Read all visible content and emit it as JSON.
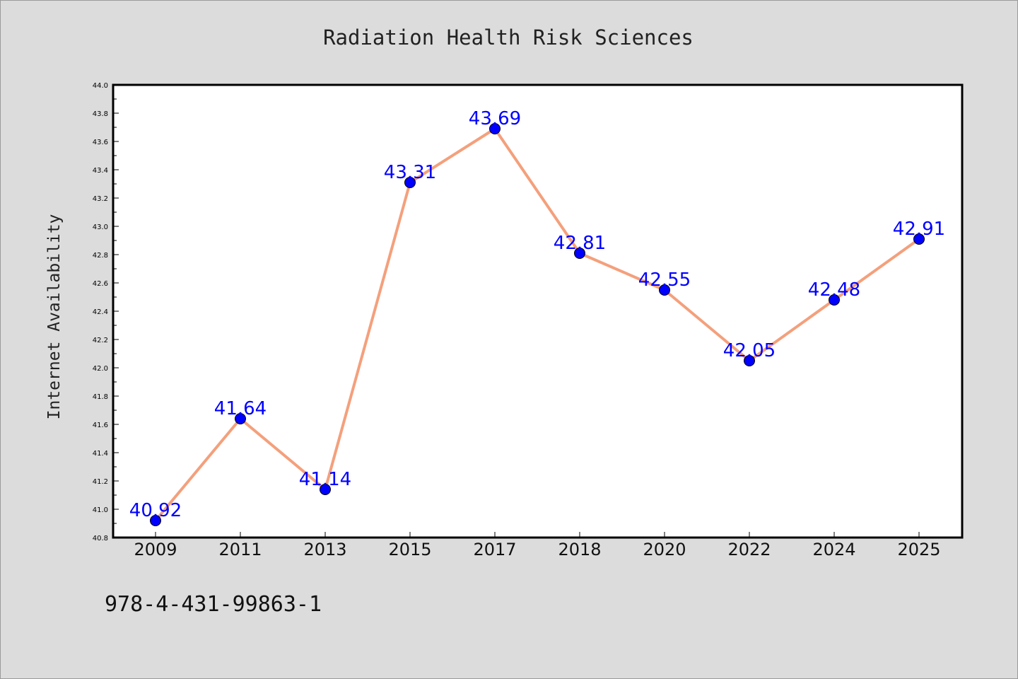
{
  "footer": {
    "isbn": "978-4-431-99863-1"
  },
  "colors": {
    "background": "#dcdcdc",
    "plot_background": "#ffffff",
    "line": "#f4a07c",
    "marker": "#0000ff",
    "data_label": "#0000ff"
  },
  "chart_data": {
    "type": "line",
    "title": "Radiation Health Risk Sciences",
    "xlabel": "",
    "ylabel": "Internet Availability",
    "categories": [
      "2009",
      "2011",
      "2013",
      "2015",
      "2017",
      "2018",
      "2020",
      "2022",
      "2024",
      "2025"
    ],
    "series": [
      {
        "values": [
          40.92,
          41.64,
          41.14,
          43.31,
          43.69,
          42.81,
          42.55,
          42.05,
          42.48,
          42.91
        ],
        "data_labels": [
          "40.92",
          "41.64",
          "41.14",
          "43.31",
          "43.69",
          "42.81",
          "42.55",
          "42.05",
          "42.48",
          "42.91"
        ]
      }
    ],
    "ylim": [
      40.8,
      44.0
    ],
    "yticks": [
      "40.8",
      "41.0",
      "41.2",
      "41.4",
      "41.6",
      "41.8",
      "42.0",
      "42.2",
      "42.4",
      "42.6",
      "42.8",
      "43.0",
      "43.2",
      "43.4",
      "43.6",
      "43.8",
      "44.0"
    ],
    "y_major_step": 0.2,
    "y_minor_step": 0.1,
    "grid": false,
    "legend": "none"
  }
}
